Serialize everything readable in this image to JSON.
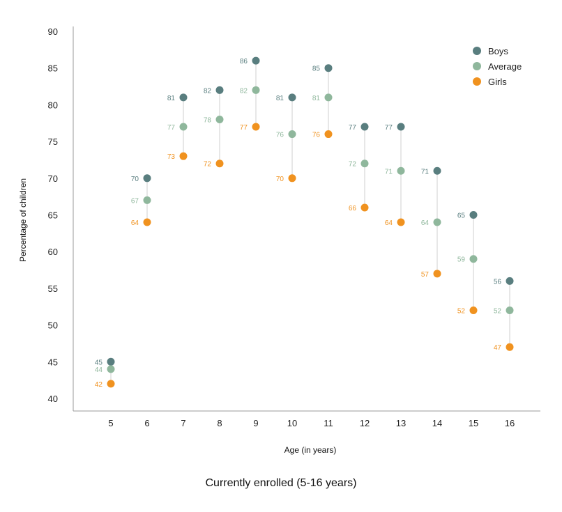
{
  "chart_data": {
    "type": "scatter",
    "title": "Currently enrolled (5-16 years)",
    "xlabel": "Age (in years)",
    "ylabel": "Percentage of children",
    "categories": [
      "5",
      "6",
      "7",
      "8",
      "9",
      "10",
      "11",
      "12",
      "13",
      "14",
      "15",
      "16"
    ],
    "ylim": [
      40,
      90
    ],
    "yticks": [
      40,
      45,
      50,
      55,
      60,
      65,
      70,
      75,
      80,
      85,
      90
    ],
    "grid": false,
    "legend_position": "top-right",
    "series": [
      {
        "name": "Boys",
        "color": "#597e7f",
        "values": [
          45,
          70,
          81,
          82,
          86,
          81,
          85,
          77,
          77,
          71,
          65,
          56
        ]
      },
      {
        "name": "Average",
        "color": "#8fb79c",
        "values": [
          44,
          67,
          77,
          78,
          82,
          76,
          81,
          72,
          71,
          64,
          59,
          52
        ]
      },
      {
        "name": "Girls",
        "color": "#f0921f",
        "values": [
          42,
          64,
          73,
          72,
          77,
          70,
          76,
          66,
          64,
          57,
          52,
          47
        ]
      }
    ]
  }
}
